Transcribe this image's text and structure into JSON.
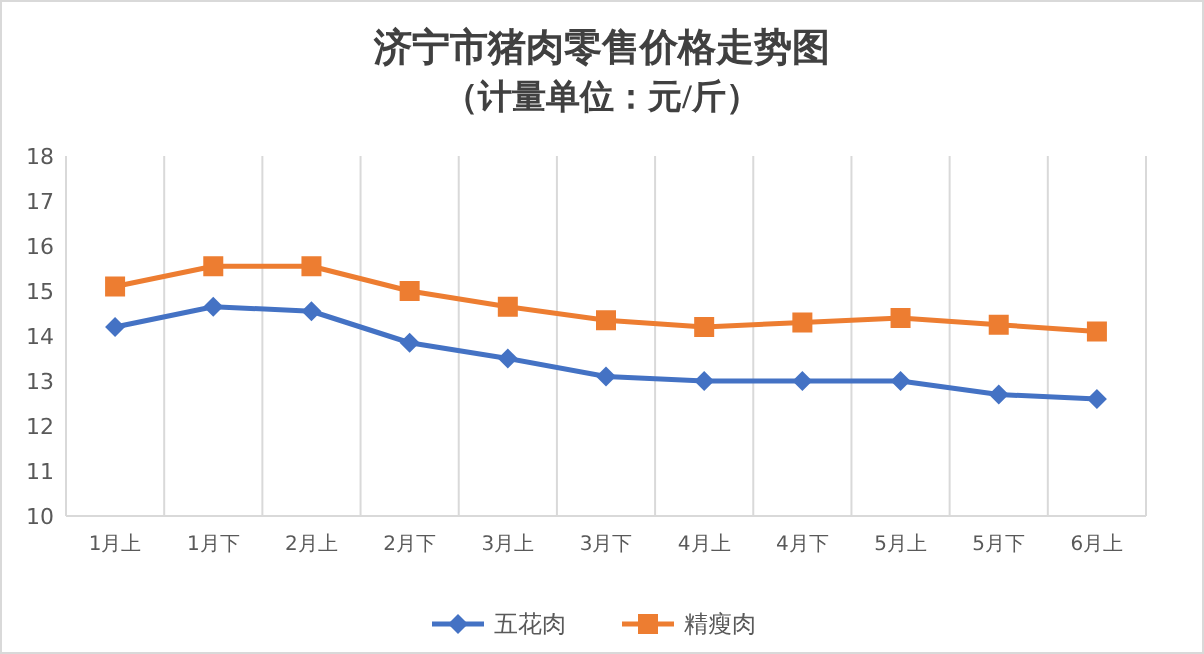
{
  "chart_data": {
    "type": "line",
    "title": "济宁市猪肉零售价格走势图",
    "subtitle": "（计量单位：元/斤）",
    "categories": [
      "1月上",
      "1月下",
      "2月上",
      "2月下",
      "3月上",
      "3月下",
      "4月上",
      "4月下",
      "5月上",
      "5月下",
      "6月上"
    ],
    "series": [
      {
        "name": "五花肉",
        "color": "#4472c4",
        "marker": "diamond",
        "values": [
          14.2,
          14.65,
          14.55,
          13.85,
          13.5,
          13.1,
          13.0,
          13.0,
          13.0,
          12.7,
          12.6
        ]
      },
      {
        "name": "精瘦肉",
        "color": "#ed7d31",
        "marker": "square",
        "values": [
          15.1,
          15.55,
          15.55,
          15.0,
          14.65,
          14.35,
          14.2,
          14.3,
          14.4,
          14.25,
          14.1
        ]
      }
    ],
    "ylim": [
      10,
      18
    ],
    "yticks": [
      10,
      11,
      12,
      13,
      14,
      15,
      16,
      17,
      18
    ],
    "grid": "x",
    "legend": "bottom"
  }
}
